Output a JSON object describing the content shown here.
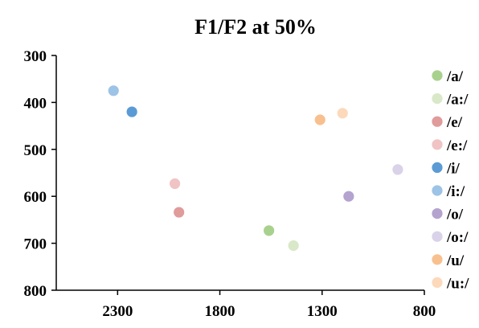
{
  "chart_data": {
    "type": "scatter",
    "title": "F1/F2 at 50%",
    "xlabel": "",
    "ylabel": "",
    "x_reversed": true,
    "y_reversed": true,
    "xlim": [
      2600,
      800
    ],
    "ylim": [
      300,
      800
    ],
    "xticks": [
      2300,
      1800,
      1300,
      800
    ],
    "yticks": [
      300,
      400,
      500,
      600,
      700,
      800
    ],
    "grid": false,
    "legend_position": "right",
    "series": [
      {
        "name": "/a/",
        "color": "#a9d18e",
        "points": [
          {
            "x": 1560,
            "y": 673
          }
        ]
      },
      {
        "name": "/a:/",
        "color": "#d9e8c8",
        "points": [
          {
            "x": 1440,
            "y": 705
          }
        ]
      },
      {
        "name": "/e/",
        "color": "#e09b9b",
        "points": [
          {
            "x": 2000,
            "y": 634
          }
        ]
      },
      {
        "name": "/e:/",
        "color": "#f0c4c4",
        "points": [
          {
            "x": 2020,
            "y": 573
          }
        ]
      },
      {
        "name": "/i/",
        "color": "#5b9bd5",
        "points": [
          {
            "x": 2230,
            "y": 420
          }
        ]
      },
      {
        "name": "/i:/",
        "color": "#9dc3e6",
        "points": [
          {
            "x": 2320,
            "y": 375
          }
        ]
      },
      {
        "name": "/o/",
        "color": "#b4a3cf",
        "points": [
          {
            "x": 1170,
            "y": 600
          }
        ]
      },
      {
        "name": "/o:/",
        "color": "#d9d2e9",
        "points": [
          {
            "x": 930,
            "y": 543
          }
        ]
      },
      {
        "name": "/u/",
        "color": "#f8c08f",
        "points": [
          {
            "x": 1310,
            "y": 437
          }
        ]
      },
      {
        "name": "/u:/",
        "color": "#fcd9bb",
        "points": [
          {
            "x": 1200,
            "y": 423
          }
        ]
      }
    ]
  }
}
